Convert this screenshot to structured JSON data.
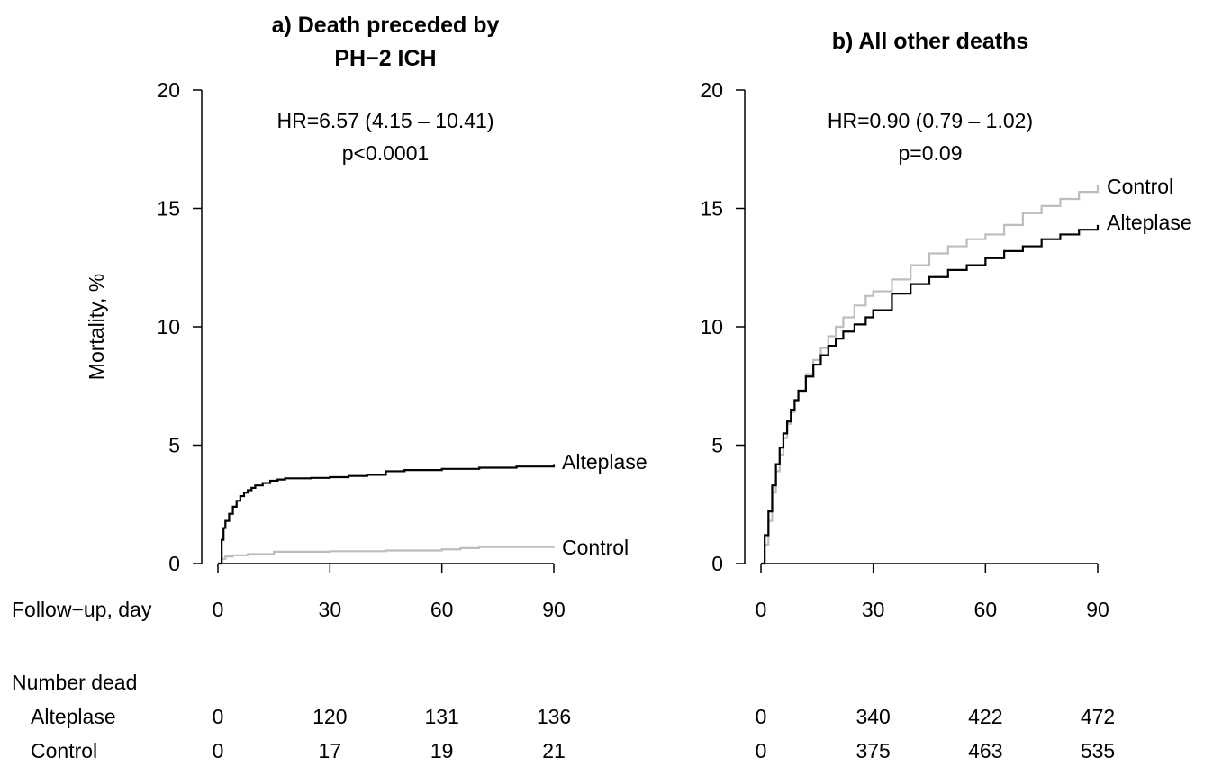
{
  "chart_data": [
    {
      "type": "line",
      "title_line1": "a) Death preceded by",
      "title_line2": "PH−2 ICH",
      "ylabel": "Mortality, %",
      "xlabel": "Follow−up, day",
      "xlim": [
        0,
        90
      ],
      "ylim": [
        0,
        20
      ],
      "xticks": [
        0,
        30,
        60,
        90
      ],
      "yticks": [
        0,
        5,
        10,
        15,
        20
      ],
      "xtick_labels": [
        "0",
        "30",
        "60",
        "90"
      ],
      "ytick_labels": [
        "0",
        "5",
        "10",
        "15",
        "20"
      ],
      "annotation_line1": "HR=6.57 (4.15 – 10.41)",
      "annotation_line2": "p<0.0001",
      "series": [
        {
          "name": "Alteplase",
          "color": "#000000",
          "x": [
            0,
            1,
            1.5,
            2,
            3,
            4,
            5,
            6,
            7,
            8,
            9,
            10,
            12,
            14,
            16,
            18,
            20,
            25,
            30,
            35,
            40,
            45,
            50,
            60,
            70,
            80,
            90
          ],
          "y": [
            0,
            1.0,
            1.5,
            1.8,
            2.1,
            2.4,
            2.65,
            2.85,
            3.0,
            3.1,
            3.2,
            3.3,
            3.4,
            3.5,
            3.55,
            3.6,
            3.6,
            3.62,
            3.65,
            3.7,
            3.75,
            3.9,
            3.95,
            4.0,
            4.05,
            4.1,
            4.2
          ]
        },
        {
          "name": "Control",
          "color": "#bdbdbd",
          "x": [
            0,
            1,
            2,
            4,
            8,
            15,
            30,
            45,
            60,
            65,
            70,
            90
          ],
          "y": [
            0,
            0.2,
            0.3,
            0.35,
            0.4,
            0.5,
            0.52,
            0.55,
            0.6,
            0.65,
            0.7,
            0.72
          ]
        }
      ],
      "risk_table": {
        "header": "Number dead",
        "rows": [
          {
            "label": "Alteplase",
            "values": [
              "0",
              "120",
              "131",
              "136"
            ]
          },
          {
            "label": "Control",
            "values": [
              "0",
              "17",
              "19",
              "21"
            ]
          }
        ]
      }
    },
    {
      "type": "line",
      "title_line1": "b) All other deaths",
      "xlim": [
        0,
        90
      ],
      "ylim": [
        0,
        20
      ],
      "xticks": [
        0,
        30,
        60,
        90
      ],
      "yticks": [
        0,
        5,
        10,
        15,
        20
      ],
      "xtick_labels": [
        "0",
        "30",
        "60",
        "90"
      ],
      "ytick_labels": [
        "0",
        "5",
        "10",
        "15",
        "20"
      ],
      "annotation_line1": "HR=0.90 (0.79 – 1.02)",
      "annotation_line2": "p=0.09",
      "series": [
        {
          "name": "Control",
          "color": "#bdbdbd",
          "x": [
            0,
            1,
            2,
            3,
            4,
            5,
            6,
            7,
            8,
            9,
            10,
            12,
            14,
            16,
            18,
            20,
            22,
            25,
            28,
            30,
            35,
            40,
            45,
            50,
            55,
            60,
            65,
            70,
            75,
            80,
            85,
            90
          ],
          "y": [
            0,
            0.8,
            1.8,
            3.0,
            3.9,
            4.6,
            5.3,
            5.9,
            6.4,
            6.9,
            7.3,
            8.0,
            8.6,
            9.1,
            9.6,
            10.0,
            10.4,
            10.9,
            11.3,
            11.5,
            12.0,
            12.6,
            13.1,
            13.4,
            13.7,
            13.9,
            14.3,
            14.8,
            15.1,
            15.4,
            15.7,
            16.0
          ]
        },
        {
          "name": "Alteplase",
          "color": "#000000",
          "x": [
            0,
            1,
            2,
            3,
            4,
            5,
            6,
            7,
            8,
            9,
            10,
            12,
            14,
            16,
            18,
            20,
            22,
            25,
            28,
            30,
            35,
            40,
            45,
            50,
            55,
            60,
            65,
            70,
            75,
            80,
            85,
            90
          ],
          "y": [
            0,
            1.2,
            2.2,
            3.3,
            4.2,
            4.9,
            5.5,
            6.0,
            6.5,
            6.9,
            7.3,
            7.9,
            8.4,
            8.8,
            9.2,
            9.5,
            9.8,
            10.1,
            10.4,
            10.7,
            11.4,
            11.8,
            12.1,
            12.4,
            12.6,
            12.9,
            13.2,
            13.4,
            13.7,
            13.9,
            14.1,
            14.3
          ]
        }
      ],
      "risk_table": {
        "rows": [
          {
            "label": "Alteplase",
            "values": [
              "0",
              "340",
              "422",
              "472"
            ]
          },
          {
            "label": "Control",
            "values": [
              "0",
              "375",
              "463",
              "535"
            ]
          }
        ]
      }
    }
  ]
}
